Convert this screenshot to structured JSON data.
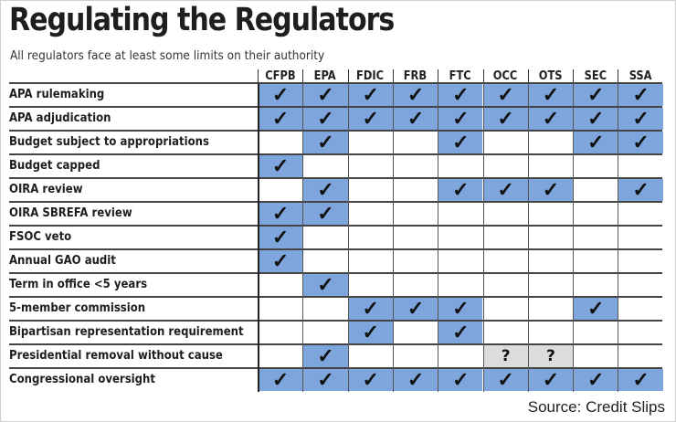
{
  "header": {
    "title": "Regulating the Regulators",
    "subtitle": "All regulators face at least some limits on their authority"
  },
  "footer": {
    "source": "Source: Credit Slips"
  },
  "colors": {
    "check_fill": "#7ea6dc",
    "unknown_fill": "#dcdcdc"
  },
  "chart_data": {
    "type": "table",
    "title": "Regulating the Regulators",
    "subtitle": "All regulators face at least some limits on their authority",
    "columns": [
      "CFPB",
      "EPA",
      "FDIC",
      "FRB",
      "FTC",
      "OCC",
      "OTS",
      "SEC",
      "SSA"
    ],
    "legend": {
      "✓": "applies (blue cell)",
      "?": "uncertain (gray cell)",
      "": "does not apply"
    },
    "rows": [
      {
        "label": "APA rulemaking",
        "values": [
          "✓",
          "✓",
          "✓",
          "✓",
          "✓",
          "✓",
          "✓",
          "✓",
          "✓"
        ]
      },
      {
        "label": "APA adjudication",
        "values": [
          "✓",
          "✓",
          "✓",
          "✓",
          "✓",
          "✓",
          "✓",
          "✓",
          "✓"
        ]
      },
      {
        "label": "Budget subject to appropriations",
        "values": [
          "",
          "✓",
          "",
          "",
          "✓",
          "",
          "",
          "✓",
          "✓"
        ]
      },
      {
        "label": "Budget capped",
        "values": [
          "✓",
          "",
          "",
          "",
          "",
          "",
          "",
          "",
          ""
        ]
      },
      {
        "label": "OIRA review",
        "values": [
          "",
          "✓",
          "",
          "",
          "✓",
          "✓",
          "✓",
          "",
          "✓"
        ]
      },
      {
        "label": "OIRA SBREFA review",
        "values": [
          "✓",
          "✓",
          "",
          "",
          "",
          "",
          "",
          "",
          ""
        ]
      },
      {
        "label": "FSOC veto",
        "values": [
          "✓",
          "",
          "",
          "",
          "",
          "",
          "",
          "",
          ""
        ]
      },
      {
        "label": "Annual GAO audit",
        "values": [
          "✓",
          "",
          "",
          "",
          "",
          "",
          "",
          "",
          ""
        ]
      },
      {
        "label": "Term in office <5 years",
        "values": [
          "",
          "✓",
          "",
          "",
          "",
          "",
          "",
          "",
          ""
        ]
      },
      {
        "label": "5-member commission",
        "values": [
          "",
          "",
          "✓",
          "✓",
          "✓",
          "",
          "",
          "✓",
          ""
        ]
      },
      {
        "label": "Bipartisan representation requirement",
        "values": [
          "",
          "",
          "✓",
          "",
          "✓",
          "",
          "",
          "",
          ""
        ]
      },
      {
        "label": "Presidential removal without cause",
        "values": [
          "",
          "✓",
          "",
          "",
          "",
          "?",
          "?",
          "",
          ""
        ]
      },
      {
        "label": "Congressional oversight",
        "values": [
          "✓",
          "✓",
          "✓",
          "✓",
          "✓",
          "✓",
          "✓",
          "✓",
          "✓"
        ]
      }
    ]
  }
}
